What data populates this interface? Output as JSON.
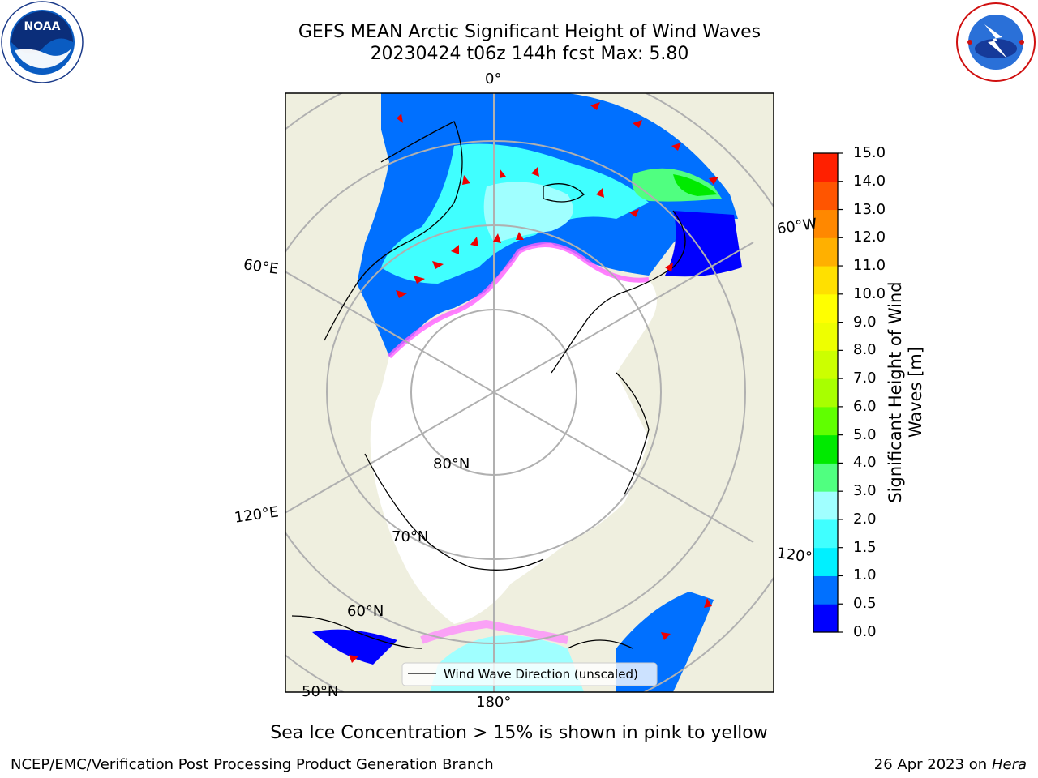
{
  "header": {
    "title_line1": "GEFS MEAN Arctic Significant Height of Wind Waves",
    "title_line2": "20230424 t06z 144h fcst   Max: 5.80"
  },
  "logos": {
    "noaa": {
      "text": "NOAA",
      "ring_text": "NATIONAL OCEANIC AND ATMOSPHERIC ADMINISTRATION · U.S. DEPARTMENT OF COMMERCE"
    },
    "nws": {
      "ring_text": "NATIONAL WEATHER SERVICE"
    }
  },
  "map": {
    "lon_labels": {
      "top": "0°",
      "left_upper": "60°E",
      "left_lower": "120°E",
      "bottom": "180°",
      "right_upper": "60°W",
      "right_lower": "120°"
    },
    "lat_labels": {
      "inner": "80°N",
      "mid": "70°N",
      "outer": "60°N",
      "far": "50°N"
    },
    "legend": {
      "label": "Wind Wave Direction (unscaled)"
    },
    "colors": {
      "land": "#efefdf",
      "ice": "#ffffff",
      "grid": "#b0b0b0",
      "arrow": "#ee0000"
    }
  },
  "colorbar": {
    "title": "Significant Height of Wind Waves [m]",
    "tick_labels": [
      "0.0",
      "0.5",
      "1.0",
      "1.5",
      "2.0",
      "3.0",
      "4.0",
      "5.0",
      "6.0",
      "7.0",
      "8.0",
      "9.0",
      "10.0",
      "11.0",
      "12.0",
      "13.0",
      "14.0",
      "15.0"
    ],
    "colors": [
      "#0000ff",
      "#0070ff",
      "#00f0ff",
      "#40ffff",
      "#a0ffff",
      "#50ff80",
      "#00ea00",
      "#60ff00",
      "#a8ff00",
      "#ccff00",
      "#eeff00",
      "#ffff00",
      "#ffe000",
      "#ffb000",
      "#ff8800",
      "#ff5500",
      "#ff2000"
    ]
  },
  "footer": {
    "note": "Sea Ice Concentration > 15% is shown in pink to yellow",
    "left": "NCEP/EMC/Verification Post Processing Product Generation Branch",
    "date": "26 Apr 2023 on ",
    "host": "Hera"
  }
}
